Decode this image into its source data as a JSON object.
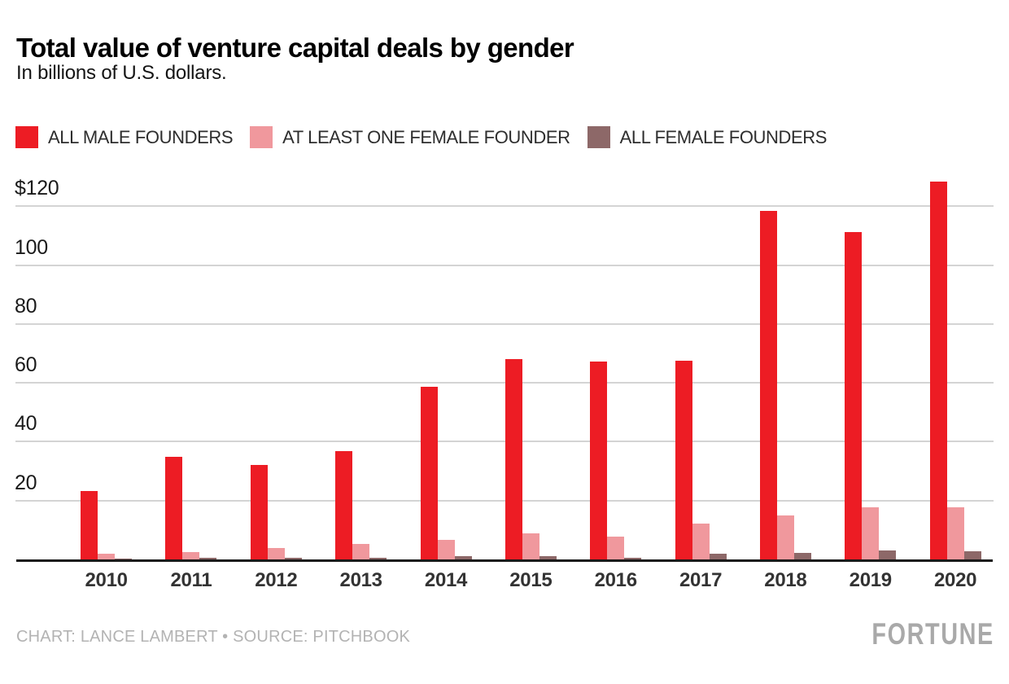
{
  "header": {
    "title": "Total value of venture capital deals by gender",
    "subtitle": "In billions of U.S. dollars."
  },
  "footer": {
    "credit": "CHART: LANCE LAMBERT • SOURCE: PITCHBOOK",
    "brand": "FORTUNE"
  },
  "colors": {
    "all_male": "#ED1C24",
    "at_least_one_female": "#F0989D",
    "all_female": "#8D6868",
    "gridline": "#d4d4d4",
    "axis": "#1a1a1a"
  },
  "chart_data": {
    "type": "bar",
    "title": "Total value of venture capital deals by gender",
    "subtitle": "In billions of U.S. dollars.",
    "categories": [
      "2010",
      "2011",
      "2012",
      "2013",
      "2014",
      "2015",
      "2016",
      "2017",
      "2018",
      "2019",
      "2020"
    ],
    "series": [
      {
        "name": "ALL MALE FOUNDERS",
        "color": "#ED1C24",
        "values": [
          23.2,
          34.9,
          32.1,
          36.8,
          58.6,
          68.0,
          67.2,
          67.5,
          118.4,
          111.2,
          128.3
        ]
      },
      {
        "name": "AT LEAST ONE FEMALE FOUNDER",
        "color": "#F0989D",
        "values": [
          1.9,
          2.5,
          3.9,
          5.3,
          6.6,
          8.9,
          7.7,
          12.2,
          14.9,
          17.7,
          17.8
        ]
      },
      {
        "name": "ALL FEMALE FOUNDERS",
        "color": "#8D6868",
        "values": [
          0.3,
          0.6,
          0.5,
          0.6,
          1.2,
          1.0,
          0.6,
          1.8,
          2.2,
          3.0,
          2.9
        ]
      }
    ],
    "xlabel": "",
    "ylabel": "Billions of U.S. dollars",
    "y_ticks": [
      20,
      40,
      60,
      80,
      100,
      120
    ],
    "y_tick_labels": [
      "20",
      "40",
      "60",
      "80",
      "100",
      "$120"
    ],
    "ylim": [
      0,
      130
    ],
    "grid": true,
    "legend_position": "top-left"
  }
}
